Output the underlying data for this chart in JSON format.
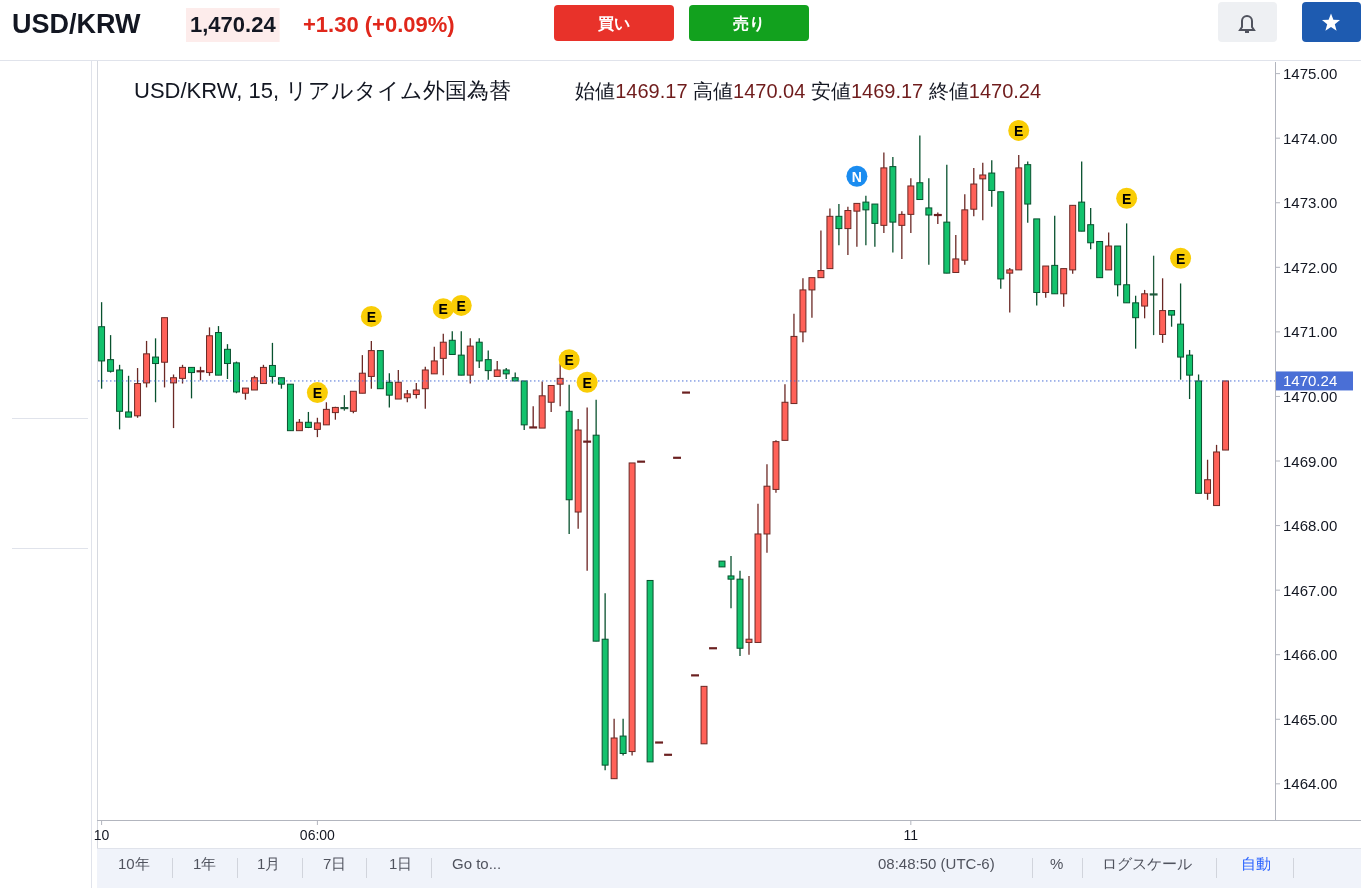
{
  "chart_data": {
    "type": "candlestick",
    "title": "USD/KRW, 15, リアルタイム外国為替",
    "subtitle": "始値1469.17 高値1470.04 安値1469.17 終値1470.24",
    "categories": [
      "10",
      null,
      null,
      null,
      null,
      null,
      null,
      null,
      null,
      null,
      null,
      null,
      null,
      null,
      null,
      null,
      null,
      null,
      null,
      null,
      null,
      null,
      null,
      null,
      "06:00",
      null,
      null,
      null,
      null,
      null,
      null,
      null,
      null,
      null,
      null,
      null,
      null,
      null,
      null,
      null,
      null,
      null,
      null,
      null,
      null,
      null,
      null,
      null,
      null,
      null,
      null,
      null,
      null,
      null,
      null,
      null,
      null,
      null,
      null,
      null,
      null,
      null,
      null,
      null,
      null,
      null,
      null,
      null,
      null,
      null,
      null,
      null,
      null,
      null,
      null,
      null,
      null,
      null,
      null,
      null,
      null,
      null,
      null,
      null,
      null,
      null,
      null,
      null,
      null,
      null,
      "11",
      null,
      null,
      null,
      null,
      null,
      null,
      null,
      null,
      null,
      null,
      null,
      null,
      null,
      null,
      null,
      null,
      null,
      null,
      null,
      null,
      null,
      null,
      null,
      null,
      null,
      null,
      null,
      null,
      null,
      null,
      null,
      null,
      null,
      null,
      null
    ],
    "ohlc": [
      [
        1471.08,
        1471.46,
        1470.12,
        1470.55
      ],
      [
        1470.57,
        1470.95,
        1470.37,
        1470.39
      ],
      [
        1470.41,
        1470.49,
        1469.49,
        1469.77
      ],
      [
        1469.76,
        1470.32,
        1469.68,
        1469.68
      ],
      [
        1469.7,
        1470.44,
        1469.67,
        1470.2
      ],
      [
        1470.21,
        1470.86,
        1470.14,
        1470.66
      ],
      [
        1470.61,
        1470.9,
        1469.91,
        1470.51
      ],
      [
        1470.53,
        1471.22,
        1470.14,
        1471.22
      ],
      [
        1470.21,
        1470.34,
        1469.51,
        1470.29
      ],
      [
        1470.28,
        1470.49,
        1470.2,
        1470.45
      ],
      [
        1470.45,
        1470.45,
        1469.97,
        1470.37
      ],
      [
        1470.39,
        1470.46,
        1470.25,
        1470.39
      ],
      [
        1470.37,
        1471.07,
        1470.32,
        1470.94
      ],
      [
        1470.99,
        1471.09,
        1470.33,
        1470.33
      ],
      [
        1470.73,
        1470.81,
        1470.27,
        1470.51
      ],
      [
        1470.52,
        1470.54,
        1470.05,
        1470.07
      ],
      [
        1470.05,
        1470.13,
        1469.95,
        1470.13
      ],
      [
        1470.1,
        1470.32,
        1470.1,
        1470.29
      ],
      [
        1470.2,
        1470.49,
        1470.2,
        1470.45
      ],
      [
        1470.48,
        1470.83,
        1470.2,
        1470.31
      ],
      [
        1470.29,
        1470.29,
        1470.12,
        1470.19
      ],
      [
        1470.19,
        1470.19,
        1469.47,
        1469.47
      ],
      [
        1469.47,
        1469.65,
        1469.47,
        1469.6
      ],
      [
        1469.6,
        1469.76,
        1469.51,
        1469.52
      ],
      [
        1469.49,
        1469.67,
        1469.37,
        1469.59
      ],
      [
        1469.56,
        1469.91,
        1469.56,
        1469.8
      ],
      [
        1469.75,
        1469.84,
        1469.64,
        1469.83
      ],
      [
        1469.82,
        1470.02,
        1469.78,
        1469.82
      ],
      [
        1469.77,
        1470.08,
        1469.74,
        1470.08
      ],
      [
        1470.05,
        1470.64,
        1470.05,
        1470.36
      ],
      [
        1470.31,
        1470.86,
        1470.12,
        1470.71
      ],
      [
        1470.71,
        1470.71,
        1470.12,
        1470.12
      ],
      [
        1470.22,
        1470.36,
        1469.83,
        1470.02
      ],
      [
        1469.96,
        1470.41,
        1469.96,
        1470.22
      ],
      [
        1469.98,
        1470.1,
        1469.91,
        1470.04
      ],
      [
        1470.03,
        1470.21,
        1469.97,
        1470.1
      ],
      [
        1470.12,
        1470.46,
        1469.81,
        1470.41
      ],
      [
        1470.35,
        1470.77,
        1470.35,
        1470.55
      ],
      [
        1470.59,
        1470.97,
        1470.33,
        1470.84
      ],
      [
        1470.87,
        1471.01,
        1470.65,
        1470.65
      ],
      [
        1470.64,
        1471.01,
        1470.33,
        1470.33
      ],
      [
        1470.33,
        1470.9,
        1470.2,
        1470.78
      ],
      [
        1470.84,
        1470.9,
        1470.44,
        1470.55
      ],
      [
        1470.57,
        1470.71,
        1470.26,
        1470.4
      ],
      [
        1470.31,
        1470.55,
        1470.31,
        1470.41
      ],
      [
        1470.41,
        1470.44,
        1470.27,
        1470.35
      ],
      [
        1470.29,
        1470.37,
        1470.24,
        1470.24
      ],
      [
        1470.24,
        1470.24,
        1469.48,
        1469.56
      ],
      [
        1469.52,
        1469.85,
        1469.52,
        1469.52
      ],
      [
        1469.51,
        1470.23,
        1469.51,
        1470.01
      ],
      [
        1469.91,
        1470.17,
        1469.76,
        1470.17
      ],
      [
        1470.19,
        1470.51,
        1469.85,
        1470.28
      ],
      [
        1469.77,
        1470.18,
        1467.87,
        1468.4
      ],
      [
        1468.21,
        1469.65,
        1467.95,
        1469.48
      ],
      [
        1469.3,
        1469.83,
        1467.3,
        1469.3
      ],
      [
        1469.4,
        1469.95,
        1466.21,
        1466.21
      ],
      [
        1466.24,
        1466.95,
        1464.21,
        1464.29
      ],
      [
        1464.08,
        1465.01,
        1464.08,
        1464.71
      ],
      [
        1464.74,
        1465.01,
        1464.44,
        1464.47
      ],
      [
        1464.5,
        1468.97,
        1464.44,
        1468.97
      ],
      [
        1468.99,
        1468.99,
        1468.99,
        1468.99
      ],
      [
        1467.15,
        1467.15,
        1464.34,
        1464.34
      ],
      [
        1464.64,
        1464.64,
        1464.64,
        1464.64
      ],
      [
        1464.45,
        1464.45,
        1464.45,
        1464.45
      ],
      [
        1469.05,
        1469.05,
        1469.05,
        1469.05
      ],
      [
        1470.06,
        1470.06,
        1470.06,
        1470.06
      ],
      [
        1465.68,
        1465.68,
        1465.68,
        1465.68
      ],
      [
        1464.62,
        1465.51,
        1464.62,
        1465.51
      ],
      [
        1466.1,
        1466.1,
        1466.1,
        1466.1
      ],
      [
        1467.45,
        1467.45,
        1467.36,
        1467.36
      ],
      [
        1467.22,
        1467.53,
        1466.72,
        1467.17
      ],
      [
        1467.17,
        1467.3,
        1465.98,
        1466.1
      ],
      [
        1466.19,
        1467.22,
        1466.0,
        1466.24
      ],
      [
        1466.19,
        1468.34,
        1466.19,
        1467.87
      ],
      [
        1467.87,
        1468.95,
        1467.58,
        1468.61
      ],
      [
        1468.56,
        1469.32,
        1468.51,
        1469.3
      ],
      [
        1469.32,
        1470.19,
        1469.32,
        1469.91
      ],
      [
        1469.89,
        1471.28,
        1469.89,
        1470.93
      ],
      [
        1471.0,
        1471.83,
        1470.84,
        1471.65
      ],
      [
        1471.65,
        1471.84,
        1471.22,
        1471.84
      ],
      [
        1471.84,
        1472.57,
        1471.84,
        1471.95
      ],
      [
        1471.98,
        1472.91,
        1471.98,
        1472.79
      ],
      [
        1472.79,
        1472.98,
        1472.34,
        1472.6
      ],
      [
        1472.6,
        1472.94,
        1472.19,
        1472.88
      ],
      [
        1472.87,
        1472.99,
        1472.32,
        1472.99
      ],
      [
        1473.01,
        1473.11,
        1472.34,
        1472.89
      ],
      [
        1472.98,
        1472.98,
        1472.32,
        1472.68
      ],
      [
        1472.65,
        1473.78,
        1472.53,
        1473.54
      ],
      [
        1473.56,
        1473.71,
        1472.23,
        1472.7
      ],
      [
        1472.65,
        1472.87,
        1472.13,
        1472.82
      ],
      [
        1472.82,
        1473.38,
        1472.53,
        1473.26
      ],
      [
        1473.31,
        1474.04,
        1473.05,
        1473.05
      ],
      [
        1472.92,
        1473.38,
        1472.04,
        1472.81
      ],
      [
        1472.81,
        1472.85,
        1472.67,
        1472.81
      ],
      [
        1472.7,
        1473.59,
        1471.91,
        1471.91
      ],
      [
        1471.92,
        1472.5,
        1471.92,
        1472.13
      ],
      [
        1472.11,
        1473.13,
        1472.04,
        1472.89
      ],
      [
        1472.9,
        1473.54,
        1472.79,
        1473.29
      ],
      [
        1473.37,
        1473.62,
        1472.73,
        1473.43
      ],
      [
        1473.46,
        1473.66,
        1472.94,
        1473.19
      ],
      [
        1473.17,
        1473.17,
        1471.67,
        1471.82
      ],
      [
        1471.91,
        1471.99,
        1471.3,
        1471.96
      ],
      [
        1471.96,
        1473.74,
        1471.96,
        1473.54
      ],
      [
        1473.59,
        1473.64,
        1472.69,
        1472.98
      ],
      [
        1472.75,
        1472.75,
        1471.41,
        1471.61
      ],
      [
        1471.61,
        1472.02,
        1471.53,
        1472.02
      ],
      [
        1472.03,
        1472.8,
        1471.59,
        1471.59
      ],
      [
        1471.59,
        1471.98,
        1471.39,
        1471.98
      ],
      [
        1471.96,
        1472.96,
        1471.9,
        1472.96
      ],
      [
        1473.01,
        1473.64,
        1472.56,
        1472.56
      ],
      [
        1472.66,
        1472.92,
        1472.28,
        1472.38
      ],
      [
        1472.4,
        1472.4,
        1471.84,
        1471.84
      ],
      [
        1471.96,
        1472.54,
        1471.96,
        1472.33
      ],
      [
        1472.33,
        1472.33,
        1471.55,
        1471.73
      ],
      [
        1471.73,
        1472.68,
        1471.45,
        1471.45
      ],
      [
        1471.45,
        1471.56,
        1470.74,
        1471.22
      ],
      [
        1471.4,
        1471.65,
        1471.21,
        1471.59
      ],
      [
        1471.58,
        1472.18,
        1470.95,
        1471.58
      ],
      [
        1470.96,
        1471.83,
        1470.83,
        1471.33
      ],
      [
        1471.33,
        1471.33,
        1471.08,
        1471.26
      ],
      [
        1471.12,
        1471.75,
        1470.26,
        1470.61
      ],
      [
        1470.64,
        1470.72,
        1469.96,
        1470.33
      ],
      [
        1470.24,
        1470.34,
        1468.5,
        1468.5
      ],
      [
        1468.5,
        1469.02,
        1468.4,
        1468.71
      ],
      [
        1468.31,
        1469.25,
        1468.31,
        1469.14
      ],
      [
        1469.17,
        1470.24,
        1469.17,
        1470.24
      ]
    ],
    "colors": [
      "#13c26d",
      "#13c26d",
      "#13c26d",
      "#13c26d",
      "#ff6158",
      "#ff6158",
      "#13c26d",
      "#ff6158",
      "#ff6158",
      "#ff6158",
      "#13c26d",
      "#6b2020",
      "#ff6158",
      "#13c26d",
      "#13c26d",
      "#13c26d",
      "#ff6158",
      "#ff6158",
      "#ff6158",
      "#13c26d",
      "#13c26d",
      "#13c26d",
      "#ff6158",
      "#13c26d",
      "#ff6158",
      "#ff6158",
      "#ff6158",
      "#1e5a3c",
      "#ff6158",
      "#ff6158",
      "#ff6158",
      "#13c26d",
      "#13c26d",
      "#ff6158",
      "#ff6158",
      "#ff6158",
      "#ff6158",
      "#ff6158",
      "#ff6158",
      "#13c26d",
      "#13c26d",
      "#ff6158",
      "#13c26d",
      "#13c26d",
      "#ff6158",
      "#13c26d",
      "#13c26d",
      "#13c26d",
      "#6b2020",
      "#ff6158",
      "#ff6158",
      "#ff6158",
      "#13c26d",
      "#ff6158",
      "#6b2020",
      "#13c26d",
      "#13c26d",
      "#ff6158",
      "#13c26d",
      "#ff6158",
      "#6b2020",
      "#13c26d",
      "#6b2020",
      "#6b2020",
      "#6b2020",
      "#6b2020",
      "#6b2020",
      "#ff6158",
      "#6b2020",
      "#13c26d",
      "#13c26d",
      "#13c26d",
      "#ff6158",
      "#ff6158",
      "#ff6158",
      "#ff6158",
      "#ff6158",
      "#ff6158",
      "#ff6158",
      "#ff6158",
      "#ff6158",
      "#ff6158",
      "#13c26d",
      "#ff6158",
      "#ff6158",
      "#13c26d",
      "#13c26d",
      "#ff6158",
      "#13c26d",
      "#ff6158",
      "#ff6158",
      "#13c26d",
      "#13c26d",
      "#6b2020",
      "#13c26d",
      "#ff6158",
      "#ff6158",
      "#ff6158",
      "#ff6158",
      "#13c26d",
      "#13c26d",
      "#ff6158",
      "#ff6158",
      "#13c26d",
      "#13c26d",
      "#ff6158",
      "#13c26d",
      "#ff6158",
      "#ff6158",
      "#13c26d",
      "#13c26d",
      "#13c26d",
      "#ff6158",
      "#13c26d",
      "#13c26d",
      "#13c26d",
      "#ff6158",
      "#1e5a3c",
      "#ff6158",
      "#13c26d",
      "#13c26d",
      "#13c26d",
      "#13c26d",
      "#ff6158",
      "#ff6158",
      "#ff6158"
    ],
    "series": [
      {
        "type": "scatter",
        "color": "#f9cd06",
        "values": [
          null,
          null,
          null,
          null,
          null,
          null,
          null,
          null,
          null,
          null,
          null,
          null,
          null,
          null,
          null,
          null,
          null,
          null,
          null,
          null,
          null,
          null,
          null,
          null,
          1470.06,
          null,
          null,
          null,
          null,
          null,
          1471.24,
          null,
          null,
          null,
          null,
          null,
          null,
          null,
          1471.36,
          null,
          1471.41,
          null,
          null,
          null,
          null,
          null,
          null,
          null,
          null,
          null,
          null,
          null,
          1470.57,
          null,
          1470.22,
          null,
          null,
          null,
          null,
          null,
          null,
          null,
          null,
          null,
          null,
          null,
          null,
          null,
          null,
          null,
          null,
          null,
          null,
          null,
          null,
          null,
          null,
          null,
          null,
          null,
          null,
          null,
          null,
          null,
          null,
          null,
          null,
          null,
          null,
          null,
          null,
          null,
          null,
          null,
          null,
          null,
          null,
          null,
          null,
          null,
          null,
          null,
          1474.12,
          null,
          null,
          null,
          null,
          null,
          null,
          null,
          null,
          null,
          null,
          null,
          1473.07,
          null,
          null,
          null,
          null,
          null,
          1472.14,
          null,
          null,
          null,
          null,
          null
        ],
        "value_labels": [
          null,
          null,
          null,
          null,
          null,
          null,
          null,
          null,
          null,
          null,
          null,
          null,
          null,
          null,
          null,
          null,
          null,
          null,
          null,
          null,
          null,
          null,
          null,
          null,
          "E",
          null,
          null,
          null,
          null,
          null,
          "E",
          null,
          null,
          null,
          null,
          null,
          null,
          null,
          "E",
          null,
          "E",
          null,
          null,
          null,
          null,
          null,
          null,
          null,
          null,
          null,
          null,
          null,
          "E",
          null,
          "E",
          null,
          null,
          null,
          null,
          null,
          null,
          null,
          null,
          null,
          null,
          null,
          null,
          null,
          null,
          null,
          null,
          null,
          null,
          null,
          null,
          null,
          null,
          null,
          null,
          null,
          null,
          null,
          null,
          null,
          null,
          null,
          null,
          null,
          null,
          null,
          null,
          null,
          null,
          null,
          null,
          null,
          null,
          null,
          null,
          null,
          null,
          null,
          "E",
          null,
          null,
          null,
          null,
          null,
          null,
          null,
          null,
          null,
          null,
          null,
          "E",
          null,
          null,
          null,
          null,
          null,
          "E",
          null,
          null,
          null,
          null,
          null
        ]
      },
      {
        "type": "scatter",
        "color": "#1a8cf0",
        "values": [
          null,
          null,
          null,
          null,
          null,
          null,
          null,
          null,
          null,
          null,
          null,
          null,
          null,
          null,
          null,
          null,
          null,
          null,
          null,
          null,
          null,
          null,
          null,
          null,
          null,
          null,
          null,
          null,
          null,
          null,
          null,
          null,
          null,
          null,
          null,
          null,
          null,
          null,
          null,
          null,
          null,
          null,
          null,
          null,
          null,
          null,
          null,
          null,
          null,
          null,
          null,
          null,
          null,
          null,
          null,
          null,
          null,
          null,
          null,
          null,
          null,
          null,
          null,
          null,
          null,
          null,
          null,
          null,
          null,
          null,
          null,
          null,
          null,
          null,
          null,
          null,
          null,
          null,
          null,
          null,
          null,
          null,
          null,
          null,
          1473.41,
          null,
          null,
          null,
          null,
          null,
          null,
          null,
          null,
          null,
          null,
          null,
          null,
          null,
          null,
          null,
          null,
          null,
          null,
          null,
          null,
          null,
          null,
          null,
          null,
          null,
          null,
          null,
          null,
          null,
          null,
          null,
          null,
          null,
          null,
          null,
          null,
          null,
          null,
          null,
          null,
          null
        ],
        "value_labels": [
          null,
          null,
          null,
          null,
          null,
          null,
          null,
          null,
          null,
          null,
          null,
          null,
          null,
          null,
          null,
          null,
          null,
          null,
          null,
          null,
          null,
          null,
          null,
          null,
          null,
          null,
          null,
          null,
          null,
          null,
          null,
          null,
          null,
          null,
          null,
          null,
          null,
          null,
          null,
          null,
          null,
          null,
          null,
          null,
          null,
          null,
          null,
          null,
          null,
          null,
          null,
          null,
          null,
          null,
          null,
          null,
          null,
          null,
          null,
          null,
          null,
          null,
          null,
          null,
          null,
          null,
          null,
          null,
          null,
          null,
          null,
          null,
          null,
          null,
          null,
          null,
          null,
          null,
          null,
          null,
          null,
          null,
          null,
          null,
          "N",
          null,
          null,
          null,
          null,
          null,
          null,
          null,
          null,
          null,
          null,
          null,
          null,
          null,
          null,
          null,
          null,
          null,
          null,
          null,
          null,
          null,
          null,
          null,
          null,
          null,
          null,
          null,
          null,
          null,
          null,
          null,
          null,
          null,
          null,
          null,
          null,
          null,
          null,
          null,
          null,
          null
        ]
      }
    ],
    "marker": "circle",
    "ylim": [
      1463.44,
      1475.18
    ],
    "yticks": [
      {
        "value": 1464,
        "label": "1464.00"
      },
      {
        "value": 1465,
        "label": "1465.00"
      },
      {
        "value": 1466,
        "label": "1466.00"
      },
      {
        "value": 1467,
        "label": "1467.00"
      },
      {
        "value": 1468,
        "label": "1468.00"
      },
      {
        "value": 1469,
        "label": "1469.00"
      },
      {
        "value": 1470,
        "label": "1470.00"
      },
      {
        "value": 1471,
        "label": "1471.00"
      },
      {
        "value": 1472,
        "label": "1472.00"
      },
      {
        "value": 1473,
        "label": "1473.00"
      },
      {
        "value": 1474,
        "label": "1474.00"
      },
      {
        "value": 1475,
        "label": "1475.00"
      }
    ],
    "ref_lines": [
      {
        "axis": "y",
        "value": 1470.24,
        "label": "1470.24",
        "color": "#4a6fd6",
        "line_style": "dotted"
      }
    ],
    "annotations": [
      "USD/KRW",
      "1,470.24",
      "+1.30 (+0.09%)",
      "買い",
      "売り",
      "10年",
      "1年",
      "1月",
      "7日",
      "1日",
      "Go to...",
      "08:48:50 (UTC-6)",
      "%",
      "ログスケール",
      "自動"
    ]
  }
}
